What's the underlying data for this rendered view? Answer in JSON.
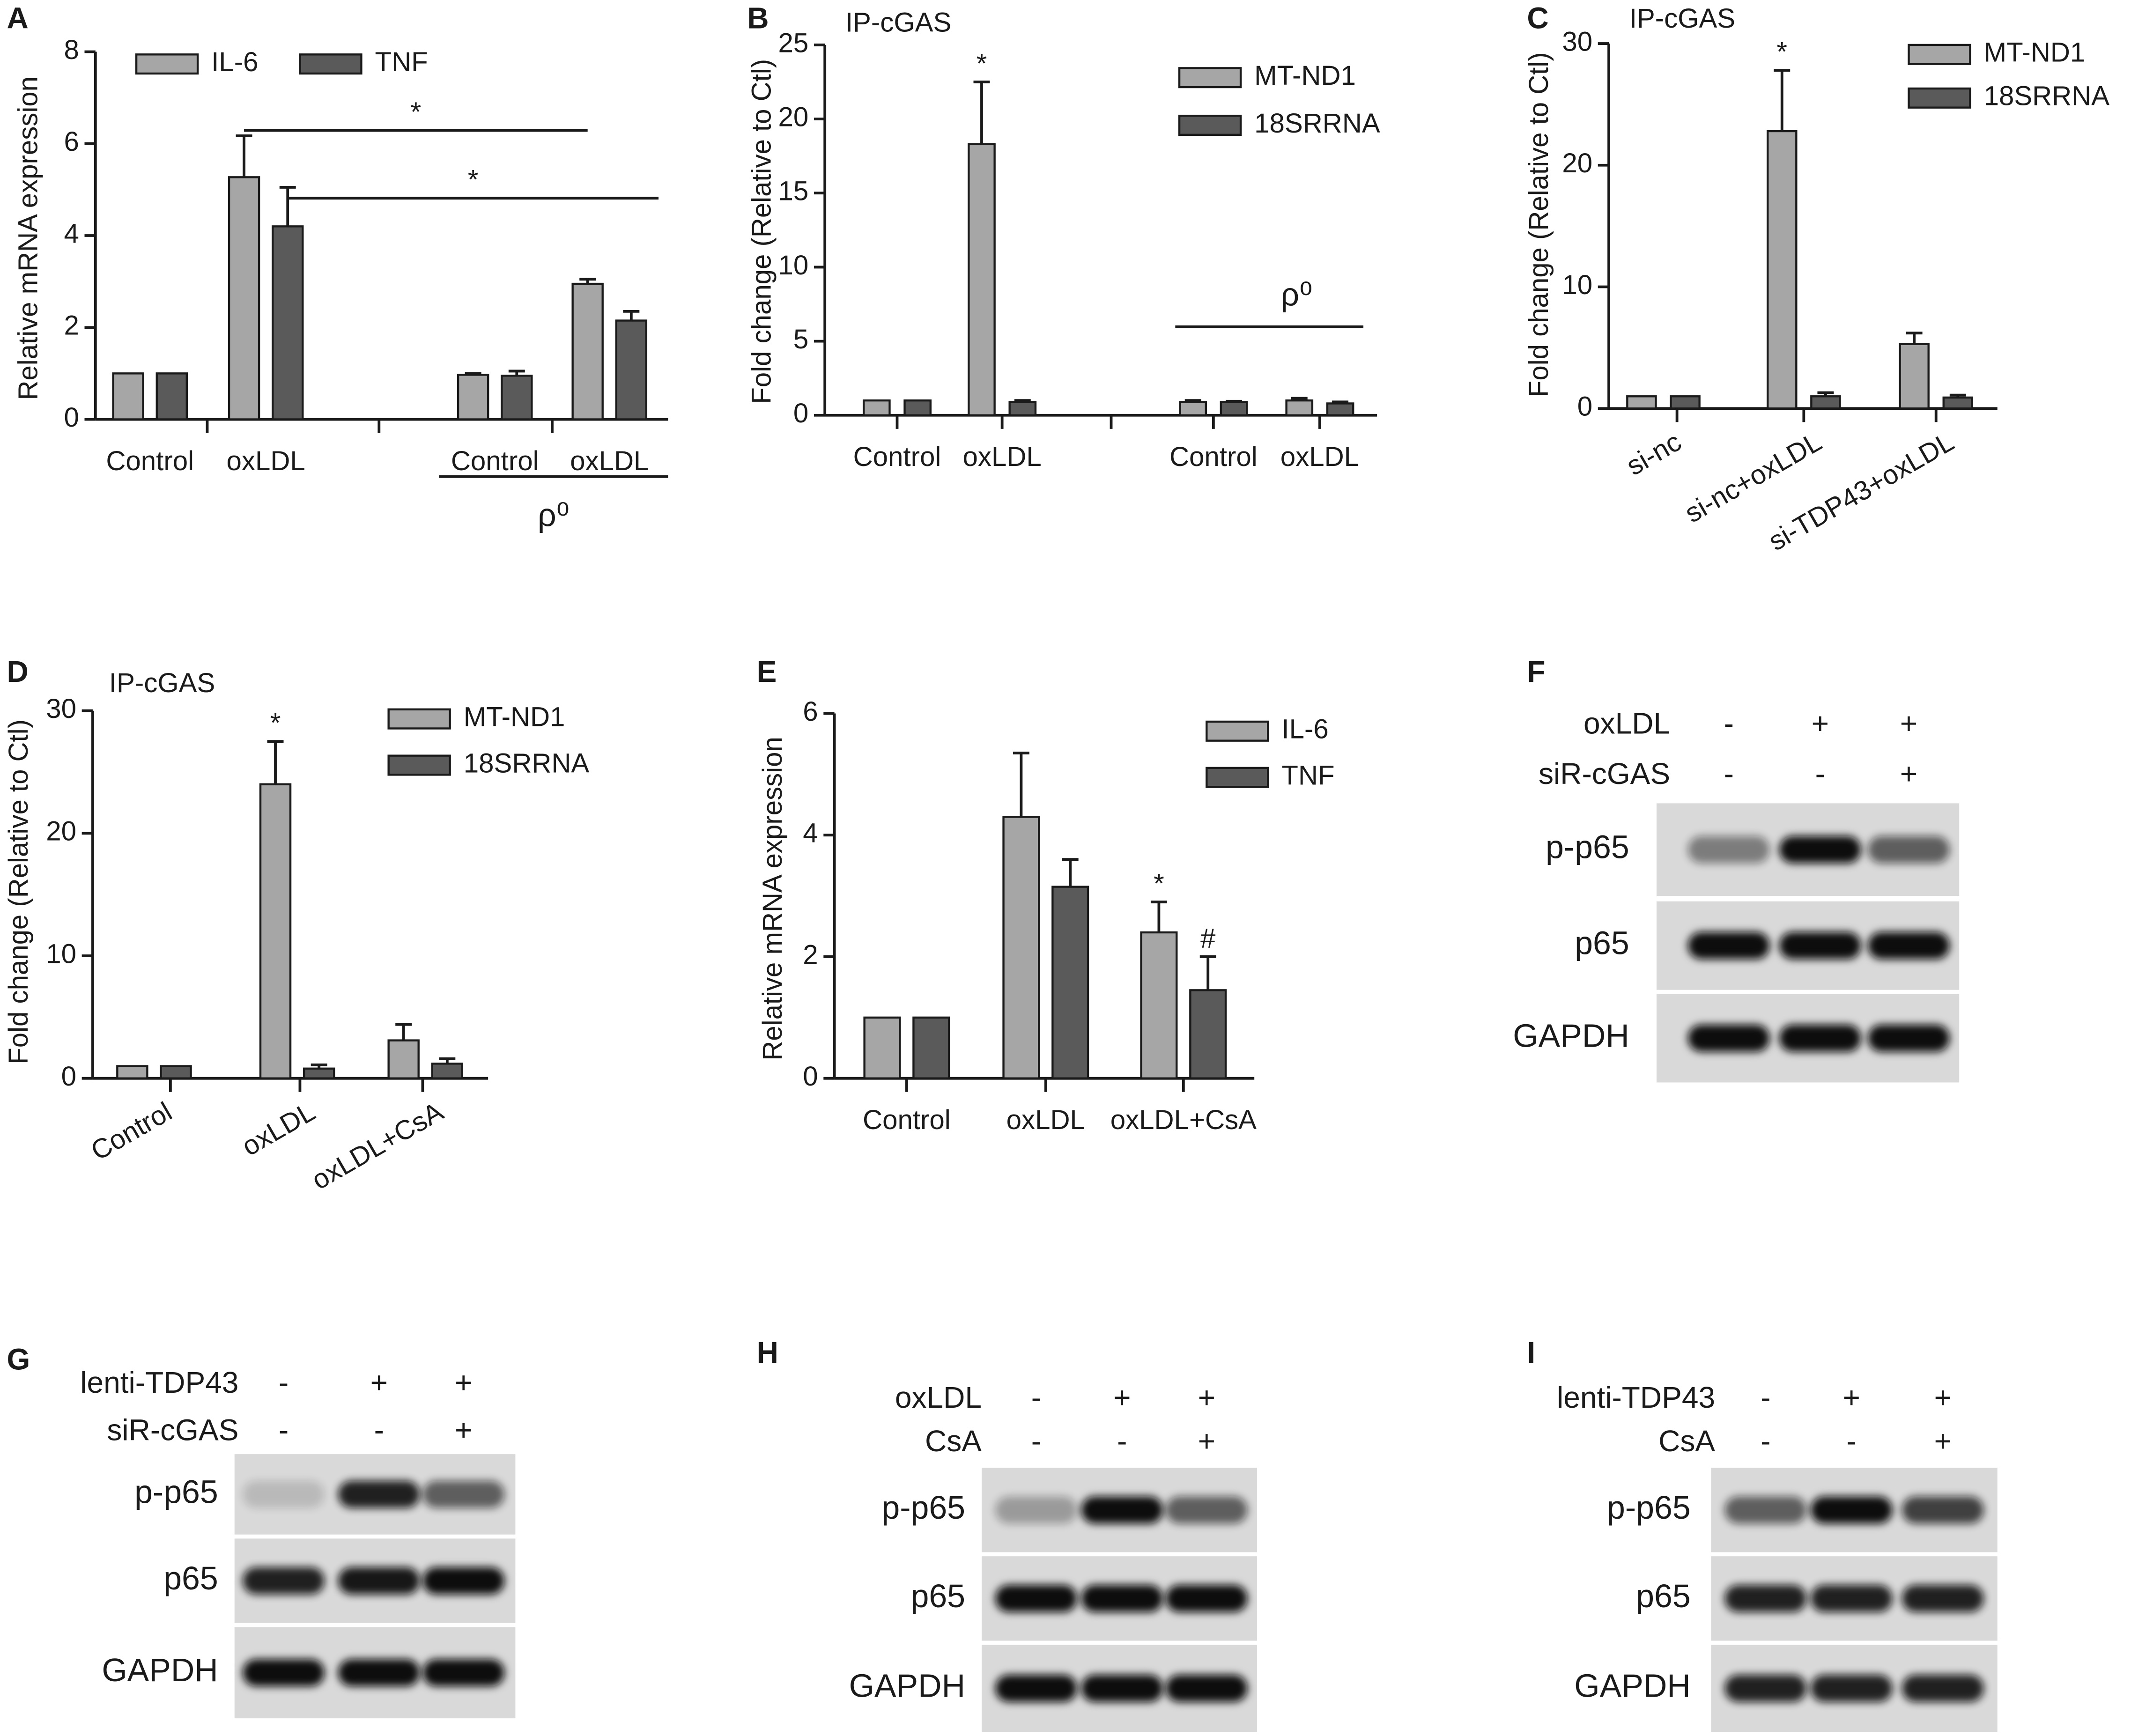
{
  "chart_data": [
    {
      "type": "bar",
      "panel": "A",
      "ylabel": "Relative mRNA expression",
      "categories": [
        "Control",
        "oxLDL",
        "Control",
        "oxLDL"
      ],
      "group_label": "ρ⁰",
      "series": [
        {
          "name": "IL-6",
          "color": "#a6a6a6",
          "values": [
            1,
            5.27,
            0.97,
            2.95
          ],
          "errors": [
            null,
            0.9,
            0.03,
            0.1
          ]
        },
        {
          "name": "TNF",
          "color": "#5a5a5a",
          "values": [
            1,
            4.2,
            0.95,
            2.15
          ],
          "errors": [
            null,
            0.85,
            0.1,
            0.2
          ]
        }
      ],
      "comparisons": [
        "*",
        "*"
      ],
      "ylim": [
        0,
        8
      ],
      "yticks": [
        0,
        2,
        4,
        6,
        8
      ]
    },
    {
      "type": "bar",
      "panel": "B",
      "title": "IP-cGAS",
      "ylabel": "Fold change (Relative to Ctl)",
      "categories": [
        "Control",
        "oxLDL",
        "Control",
        "oxLDL"
      ],
      "group_label": "ρ⁰",
      "series": [
        {
          "name": "MT-ND1",
          "color": "#a6a6a6",
          "values": [
            1,
            18.3,
            0.9,
            1.0
          ],
          "errors": [
            null,
            4.2,
            0.1,
            0.15
          ],
          "markers": [
            null,
            "*",
            null,
            null
          ]
        },
        {
          "name": "18SRRNA",
          "color": "#5a5a5a",
          "values": [
            1,
            0.9,
            0.9,
            0.8
          ],
          "errors": [
            null,
            0.1,
            0.05,
            0.1
          ]
        }
      ],
      "ylim": [
        0,
        25
      ],
      "yticks": [
        0,
        5,
        10,
        15,
        20,
        25
      ]
    },
    {
      "type": "bar",
      "panel": "C",
      "title": "IP-cGAS",
      "ylabel": "Fold change (Relative to Ctl)",
      "categories": [
        "si-nc",
        "si-nc+oxLDL",
        "si-TDP43+oxLDL"
      ],
      "series": [
        {
          "name": "MT-ND1",
          "color": "#a6a6a6",
          "values": [
            1,
            22.8,
            5.3
          ],
          "errors": [
            null,
            5,
            0.9
          ],
          "markers": [
            null,
            "*",
            null
          ]
        },
        {
          "name": "18SRRNA",
          "color": "#5a5a5a",
          "values": [
            1,
            1.0,
            0.9
          ],
          "errors": [
            null,
            0.3,
            0.2
          ]
        }
      ],
      "ylim": [
        0,
        30
      ],
      "yticks": [
        0,
        10,
        20,
        30
      ]
    },
    {
      "type": "bar",
      "panel": "D",
      "title": "IP-cGAS",
      "ylabel": "Fold change (Relative to Ctl)",
      "categories": [
        "Control",
        "oxLDL",
        "oxLDL+CsA"
      ],
      "series": [
        {
          "name": "MT-ND1",
          "color": "#a6a6a6",
          "values": [
            1,
            24,
            3.1
          ],
          "errors": [
            null,
            3.5,
            1.3
          ],
          "markers": [
            null,
            "*",
            null
          ]
        },
        {
          "name": "18SRRNA",
          "color": "#5a5a5a",
          "values": [
            1,
            0.8,
            1.2
          ],
          "errors": [
            null,
            0.3,
            0.4
          ]
        }
      ],
      "ylim": [
        0,
        30
      ],
      "yticks": [
        0,
        10,
        20,
        30
      ]
    },
    {
      "type": "bar",
      "panel": "E",
      "ylabel": "Relative mRNA expression",
      "categories": [
        "Control",
        "oxLDL",
        "oxLDL+CsA"
      ],
      "series": [
        {
          "name": "IL-6",
          "color": "#a6a6a6",
          "values": [
            1,
            4.3,
            2.4
          ],
          "errors": [
            null,
            1.05,
            0.5
          ],
          "markers": [
            null,
            null,
            "*"
          ]
        },
        {
          "name": "TNF",
          "color": "#5a5a5a",
          "values": [
            1,
            3.15,
            1.45
          ],
          "errors": [
            null,
            0.45,
            0.55
          ],
          "markers": [
            null,
            null,
            "#"
          ]
        }
      ],
      "ylim": [
        0,
        6
      ],
      "yticks": [
        0,
        2,
        4,
        6
      ]
    }
  ],
  "blots": [
    {
      "panel": "F",
      "conditions": [
        {
          "label": "oxLDL",
          "signs": [
            "-",
            "+",
            "+"
          ]
        },
        {
          "label": "siR-cGAS",
          "signs": [
            "-",
            "-",
            "+"
          ]
        }
      ],
      "rows": [
        "p-p65",
        "p65",
        "GAPDH"
      ]
    },
    {
      "panel": "G",
      "conditions": [
        {
          "label": "lenti-TDP43",
          "signs": [
            "-",
            "+",
            "+"
          ]
        },
        {
          "label": "siR-cGAS",
          "signs": [
            "-",
            "-",
            "+"
          ]
        }
      ],
      "rows": [
        "p-p65",
        "p65",
        "GAPDH"
      ]
    },
    {
      "panel": "H",
      "conditions": [
        {
          "label": "oxLDL",
          "signs": [
            "-",
            "+",
            "+"
          ]
        },
        {
          "label": "CsA",
          "signs": [
            "-",
            "-",
            "+"
          ]
        }
      ],
      "rows": [
        "p-p65",
        "p65",
        "GAPDH"
      ]
    },
    {
      "panel": "I",
      "conditions": [
        {
          "label": "lenti-TDP43",
          "signs": [
            "-",
            "+",
            "+"
          ]
        },
        {
          "label": "CsA",
          "signs": [
            "-",
            "-",
            "+"
          ]
        }
      ],
      "rows": [
        "p-p65",
        "p65",
        "GAPDH"
      ]
    }
  ]
}
